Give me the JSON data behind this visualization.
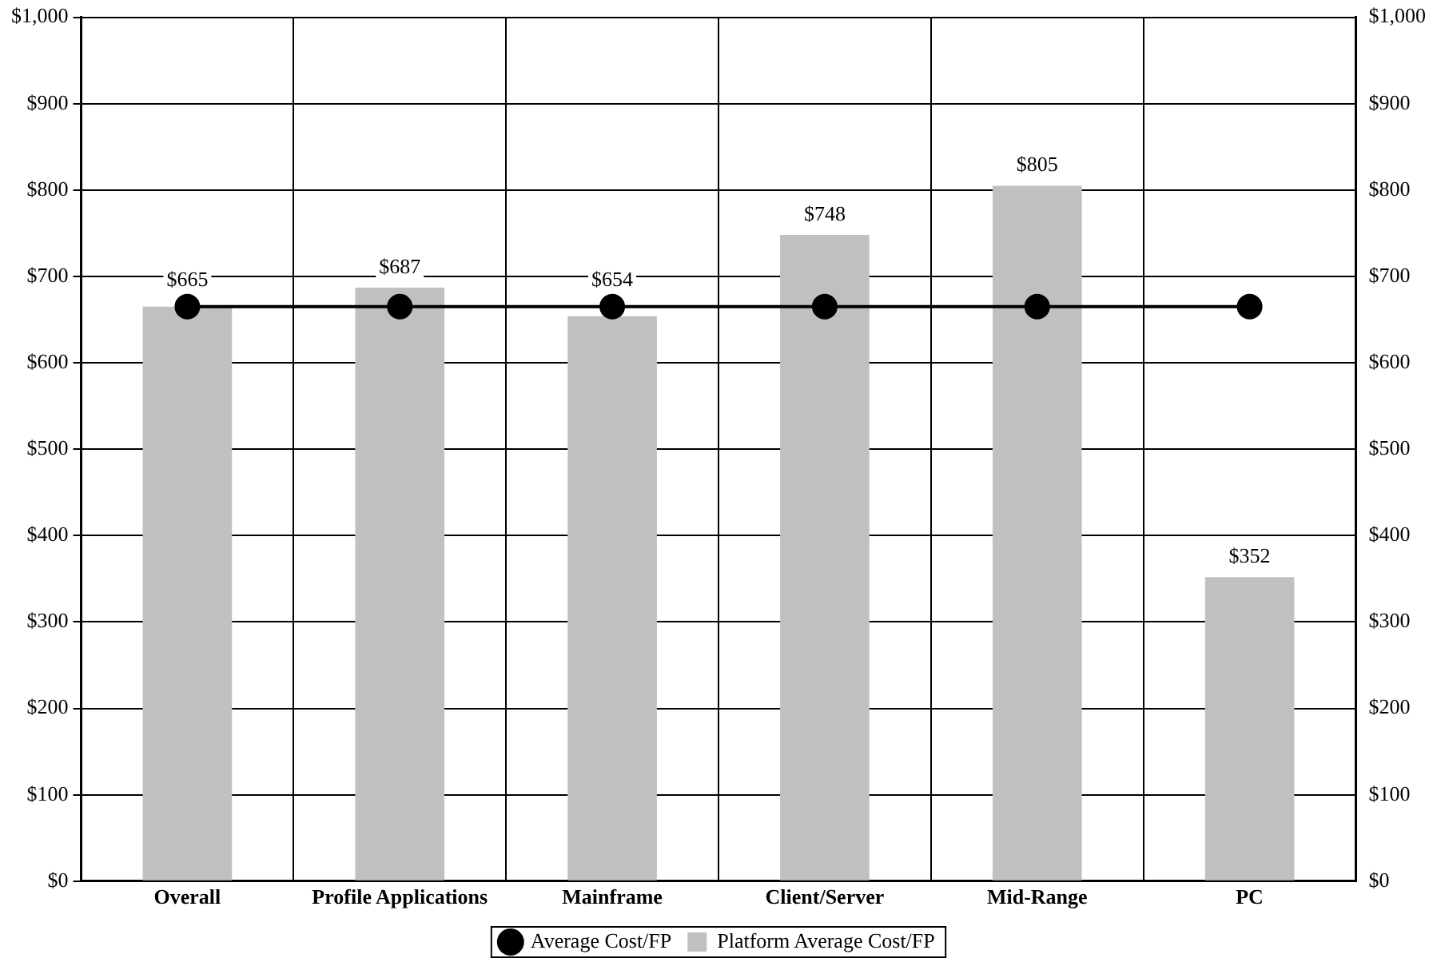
{
  "chart_data": {
    "type": "bar",
    "categories": [
      "Overall",
      "Profile Applications",
      "Mainframe",
      "Client/Server",
      "Mid-Range",
      "PC"
    ],
    "series": [
      {
        "name": "Platform Average Cost/FP",
        "color": "#c0c0c0",
        "values": [
          665,
          687,
          654,
          748,
          805,
          352
        ],
        "value_labels": [
          "$665",
          "$687",
          "$654",
          "$748",
          "$805",
          "$352"
        ]
      },
      {
        "name": "Average Cost/FP",
        "type": "line",
        "color": "#000000",
        "values": [
          665,
          665,
          665,
          665,
          665,
          665
        ]
      }
    ],
    "ylim": [
      0,
      1000
    ],
    "yticks": [
      {
        "value": 0,
        "label": "$0"
      },
      {
        "value": 100,
        "label": "$100"
      },
      {
        "value": 200,
        "label": "$200"
      },
      {
        "value": 300,
        "label": "$300"
      },
      {
        "value": 400,
        "label": "$400"
      },
      {
        "value": 500,
        "label": "$500"
      },
      {
        "value": 600,
        "label": "$600"
      },
      {
        "value": 700,
        "label": "$700"
      },
      {
        "value": 800,
        "label": "$800"
      },
      {
        "value": 900,
        "label": "$900"
      },
      {
        "value": 1000,
        "label": "$1,000"
      }
    ],
    "y2lim": [
      0,
      1000
    ],
    "y2ticks": [
      {
        "value": 0,
        "label": "$0"
      },
      {
        "value": 100,
        "label": "$100"
      },
      {
        "value": 200,
        "label": "$200"
      },
      {
        "value": 300,
        "label": "$300"
      },
      {
        "value": 400,
        "label": "$400"
      },
      {
        "value": 500,
        "label": "$500"
      },
      {
        "value": 600,
        "label": "$600"
      },
      {
        "value": 700,
        "label": "$700"
      },
      {
        "value": 800,
        "label": "$800"
      },
      {
        "value": 900,
        "label": "$900"
      },
      {
        "value": 1000,
        "label": "$1,000"
      }
    ],
    "grid": true,
    "legend": "bottom",
    "marker": "circle",
    "line_style": "solid"
  }
}
